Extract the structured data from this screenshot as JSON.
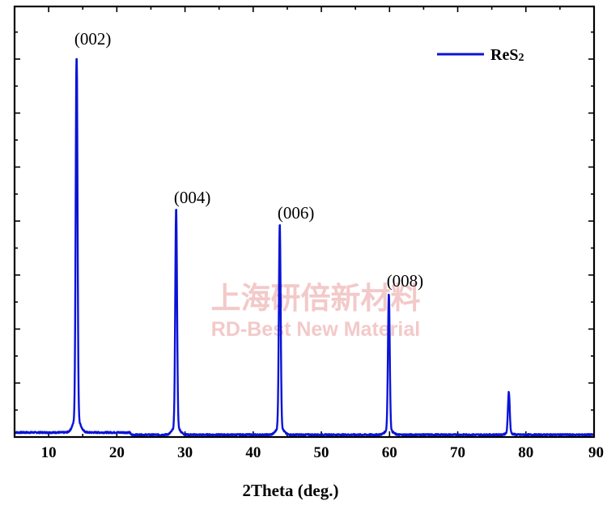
{
  "chart_data": {
    "type": "line",
    "title": "",
    "xlabel": "2Theta (deg.)",
    "ylabel": "",
    "xlim": [
      5,
      90
    ],
    "ylim": [
      0,
      1.0
    ],
    "xticks": [
      "10",
      "20",
      "30",
      "40",
      "50",
      "60",
      "70",
      "80",
      "90"
    ],
    "grid": false,
    "legend_position": "top-right",
    "series": [
      {
        "name": "ReS2",
        "color": "#0a14d6",
        "baseline": 0.012,
        "peaks": [
          {
            "x": 14.1,
            "y": 1.0
          },
          {
            "x": 28.7,
            "y": 0.58
          },
          {
            "x": 43.9,
            "y": 0.54
          },
          {
            "x": 59.9,
            "y": 0.36
          },
          {
            "x": 77.5,
            "y": 0.11
          }
        ]
      }
    ],
    "annotations": [
      {
        "text": "(002)",
        "x": 14.1
      },
      {
        "text": "(004)",
        "x": 28.7
      },
      {
        "text": "(006)",
        "x": 43.9
      },
      {
        "text": "(008)",
        "x": 59.9
      }
    ]
  },
  "legend": {
    "main": "ReS",
    "sub": "2"
  },
  "watermark": {
    "cn": "上海研倍新材料",
    "en": "RD-Best New Material"
  }
}
